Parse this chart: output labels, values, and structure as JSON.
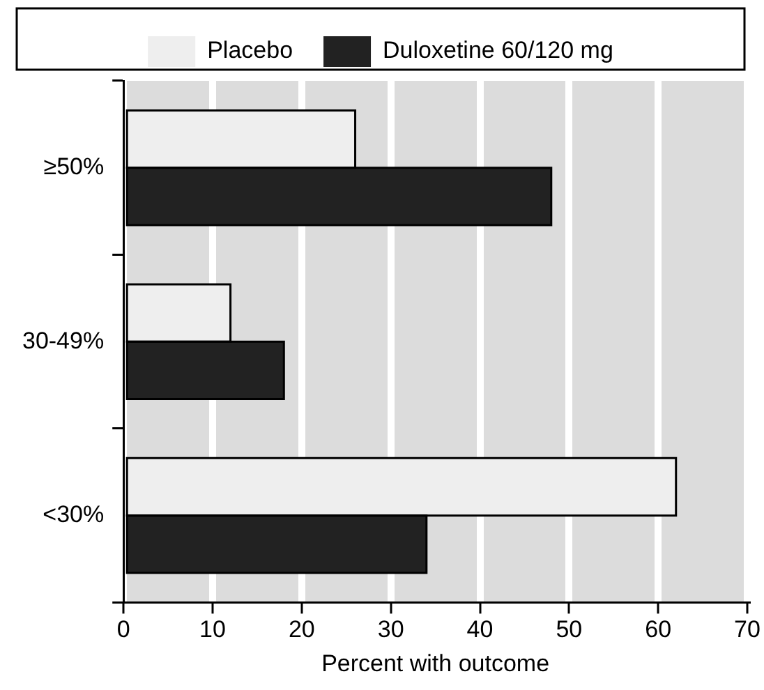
{
  "chart_data": {
    "type": "bar",
    "orientation": "horizontal",
    "categories": [
      "≥50%",
      "30-49%",
      "<30%"
    ],
    "series": [
      {
        "name": "Placebo",
        "color": "#eeeeee",
        "values": [
          26,
          12,
          62
        ]
      },
      {
        "name": "Duloxetine 60/120 mg",
        "color": "#222222",
        "values": [
          48,
          18,
          34
        ]
      }
    ],
    "xlabel": "Percent with outcome",
    "xlim": [
      0,
      70
    ],
    "xticks": [
      0,
      10,
      20,
      30,
      40,
      50,
      60,
      70
    ],
    "grid": "x",
    "legend": "top"
  }
}
